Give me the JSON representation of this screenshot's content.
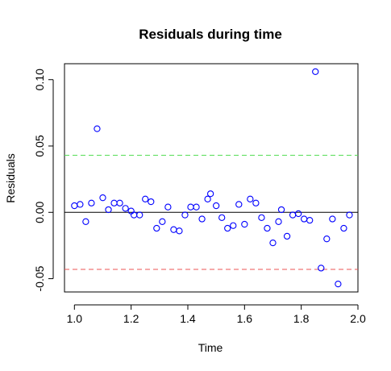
{
  "chart_data": {
    "type": "scatter",
    "title": "Residuals during time",
    "xlabel": "Time",
    "ylabel": "Residuals",
    "xlim": [
      0.965,
      2.0
    ],
    "ylim": [
      -0.06,
      0.112
    ],
    "xticks": [
      1.0,
      1.2,
      1.4,
      1.6,
      1.8,
      2.0
    ],
    "xtick_labels": [
      "1.0",
      "1.2",
      "1.4",
      "1.6",
      "1.8",
      "2.0"
    ],
    "yticks": [
      -0.05,
      0.0,
      0.05,
      0.1
    ],
    "ytick_labels": [
      "-0.05",
      "0.00",
      "0.05",
      "0.10"
    ],
    "grid": false,
    "point_color": "#0000ff",
    "reference_lines": [
      {
        "y": 0.0,
        "color": "#000000",
        "style": "solid"
      },
      {
        "y": 0.043,
        "color": "#55dd55",
        "style": "dashed"
      },
      {
        "y": -0.043,
        "color": "#ee5555",
        "style": "dashed"
      }
    ],
    "points": [
      {
        "x": 1.0,
        "y": 0.005
      },
      {
        "x": 1.02,
        "y": 0.006
      },
      {
        "x": 1.04,
        "y": -0.007
      },
      {
        "x": 1.06,
        "y": 0.007
      },
      {
        "x": 1.08,
        "y": 0.063
      },
      {
        "x": 1.1,
        "y": 0.011
      },
      {
        "x": 1.12,
        "y": 0.002
      },
      {
        "x": 1.14,
        "y": 0.007
      },
      {
        "x": 1.16,
        "y": 0.007
      },
      {
        "x": 1.18,
        "y": 0.003
      },
      {
        "x": 1.2,
        "y": 0.001
      },
      {
        "x": 1.21,
        "y": -0.002
      },
      {
        "x": 1.23,
        "y": -0.002
      },
      {
        "x": 1.25,
        "y": 0.01
      },
      {
        "x": 1.27,
        "y": 0.008
      },
      {
        "x": 1.29,
        "y": -0.012
      },
      {
        "x": 1.31,
        "y": -0.007
      },
      {
        "x": 1.33,
        "y": 0.004
      },
      {
        "x": 1.35,
        "y": -0.013
      },
      {
        "x": 1.37,
        "y": -0.014
      },
      {
        "x": 1.39,
        "y": -0.002
      },
      {
        "x": 1.41,
        "y": 0.004
      },
      {
        "x": 1.43,
        "y": 0.004
      },
      {
        "x": 1.45,
        "y": -0.005
      },
      {
        "x": 1.47,
        "y": 0.01
      },
      {
        "x": 1.48,
        "y": 0.014
      },
      {
        "x": 1.5,
        "y": 0.005
      },
      {
        "x": 1.52,
        "y": -0.004
      },
      {
        "x": 1.54,
        "y": -0.012
      },
      {
        "x": 1.56,
        "y": -0.01
      },
      {
        "x": 1.58,
        "y": 0.006
      },
      {
        "x": 1.6,
        "y": -0.009
      },
      {
        "x": 1.62,
        "y": 0.01
      },
      {
        "x": 1.64,
        "y": 0.007
      },
      {
        "x": 1.66,
        "y": -0.004
      },
      {
        "x": 1.68,
        "y": -0.012
      },
      {
        "x": 1.7,
        "y": -0.023
      },
      {
        "x": 1.72,
        "y": -0.007
      },
      {
        "x": 1.73,
        "y": 0.002
      },
      {
        "x": 1.75,
        "y": -0.018
      },
      {
        "x": 1.77,
        "y": -0.002
      },
      {
        "x": 1.79,
        "y": -0.001
      },
      {
        "x": 1.81,
        "y": -0.005
      },
      {
        "x": 1.83,
        "y": -0.006
      },
      {
        "x": 1.85,
        "y": 0.106
      },
      {
        "x": 1.87,
        "y": -0.042
      },
      {
        "x": 1.89,
        "y": -0.02
      },
      {
        "x": 1.91,
        "y": -0.005
      },
      {
        "x": 1.93,
        "y": -0.054
      },
      {
        "x": 1.95,
        "y": -0.012
      },
      {
        "x": 1.97,
        "y": -0.002
      }
    ]
  }
}
